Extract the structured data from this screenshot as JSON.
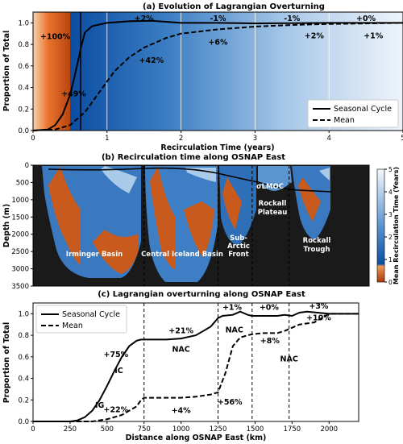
{
  "chart_data": [
    {
      "type": "line",
      "title": "(a) Evolution of Lagrangian Overturning",
      "xlabel": "Recirculation Time (years)",
      "ylabel": "Proportion of Total",
      "xlim": [
        0,
        5
      ],
      "ylim": [
        0,
        1.1
      ],
      "xticks": [
        "0",
        "1",
        "2",
        "3",
        "4",
        "5"
      ],
      "yticks": [
        "0.0",
        "0.2",
        "0.4",
        "0.6",
        "0.8",
        "1.0"
      ],
      "legend": {
        "position": "bottom-right"
      },
      "background": "orange (0–0.7 yr) shading to blue (0.7–5 yr)",
      "series": [
        {
          "name": "Seasonal Cycle",
          "style": "solid",
          "x": [
            0,
            0.2,
            0.3,
            0.4,
            0.5,
            0.55,
            0.6,
            0.65,
            0.7,
            0.8,
            1.0,
            1.3,
            1.6,
            2.0,
            2.5,
            3.0,
            4.0,
            5.0
          ],
          "y": [
            0,
            0.01,
            0.05,
            0.15,
            0.33,
            0.47,
            0.62,
            0.78,
            0.91,
            0.97,
            1.0,
            1.015,
            1.02,
            1.0,
            1.0,
            0.995,
            1.0,
            1.0
          ]
        },
        {
          "name": "Mean",
          "style": "dashed",
          "x": [
            0,
            0.3,
            0.5,
            0.7,
            0.9,
            1.1,
            1.3,
            1.5,
            1.8,
            2.0,
            2.5,
            3.0,
            3.5,
            4.0,
            5.0
          ],
          "y": [
            0,
            0.01,
            0.05,
            0.17,
            0.36,
            0.55,
            0.68,
            0.77,
            0.86,
            0.9,
            0.94,
            0.965,
            0.98,
            0.99,
            1.0
          ]
        }
      ],
      "annotations": [
        "+100%",
        "+49%",
        "+2%",
        "-1%",
        "-1%",
        "+0%",
        "+42%",
        "+6%",
        "+2%",
        "+1%"
      ]
    },
    {
      "type": "heatmap",
      "title": "(b) Recirculation time along OSNAP East",
      "ylabel": "Depth (m)",
      "ylim": [
        3500,
        0
      ],
      "yticks": [
        "0",
        "500",
        "1000",
        "1500",
        "2000",
        "2500",
        "3000",
        "3500"
      ],
      "colorbar": {
        "label": "Mean Recirculation Time (Years)",
        "range": [
          0,
          5
        ],
        "ticks": [
          "0",
          "1",
          "2",
          "3",
          "4",
          "5"
        ]
      },
      "regions": [
        "Irminger Basin",
        "Central Iceland Basin",
        "Sub-Arctic Front",
        "Rockall Plateau",
        "Rockall Trough"
      ],
      "contour_label": "σLMOC"
    },
    {
      "type": "line",
      "title": "(c) Lagrangian overturning along OSNAP East",
      "xlabel": "Distance along OSNAP East (km)",
      "ylabel": "Proportion of Total",
      "xlim": [
        0,
        2200
      ],
      "ylim": [
        0,
        1.1
      ],
      "xticks": [
        "0",
        "250",
        "500",
        "750",
        "1000",
        "1250",
        "1500",
        "1750",
        "2000"
      ],
      "yticks": [
        "0.0",
        "0.2",
        "0.4",
        "0.6",
        "0.8",
        "1.0"
      ],
      "vlines_km": [
        750,
        1250,
        1480,
        1730
      ],
      "legend": {
        "position": "top-left"
      },
      "series": [
        {
          "name": "Seasonal Cycle",
          "style": "solid",
          "x": [
            0,
            250,
            300,
            350,
            400,
            450,
            500,
            550,
            600,
            650,
            700,
            730,
            750,
            900,
            1000,
            1100,
            1200,
            1250,
            1280,
            1350,
            1400,
            1450,
            1480,
            1550,
            1650,
            1700,
            1750,
            1800,
            1850,
            2000,
            2200
          ],
          "y": [
            0,
            0,
            0.01,
            0.04,
            0.1,
            0.2,
            0.33,
            0.47,
            0.6,
            0.7,
            0.75,
            0.76,
            0.76,
            0.76,
            0.77,
            0.8,
            0.88,
            0.96,
            0.98,
            0.99,
            1.02,
            0.99,
            0.98,
            0.98,
            0.98,
            0.99,
            0.98,
            1.01,
            1.02,
            1.0,
            1.0
          ]
        },
        {
          "name": "Mean",
          "style": "dashed",
          "x": [
            0,
            400,
            500,
            600,
            700,
            730,
            750,
            900,
            1000,
            1100,
            1200,
            1250,
            1300,
            1350,
            1400,
            1450,
            1480,
            1550,
            1650,
            1700,
            1750,
            1800,
            1900,
            2000,
            2200
          ],
          "y": [
            0,
            0,
            0.02,
            0.06,
            0.14,
            0.2,
            0.22,
            0.22,
            0.22,
            0.23,
            0.25,
            0.27,
            0.45,
            0.7,
            0.78,
            0.8,
            0.81,
            0.82,
            0.82,
            0.84,
            0.87,
            0.9,
            0.92,
            1.0,
            1.0
          ]
        }
      ],
      "annotations": [
        "IG",
        "IC",
        "+75%",
        "+22%",
        "+4%",
        "NAC",
        "+21%",
        "+56%",
        "+1%",
        "NAC",
        "+0%",
        "+8%",
        "NAC",
        "+3%",
        "+10%"
      ]
    }
  ]
}
